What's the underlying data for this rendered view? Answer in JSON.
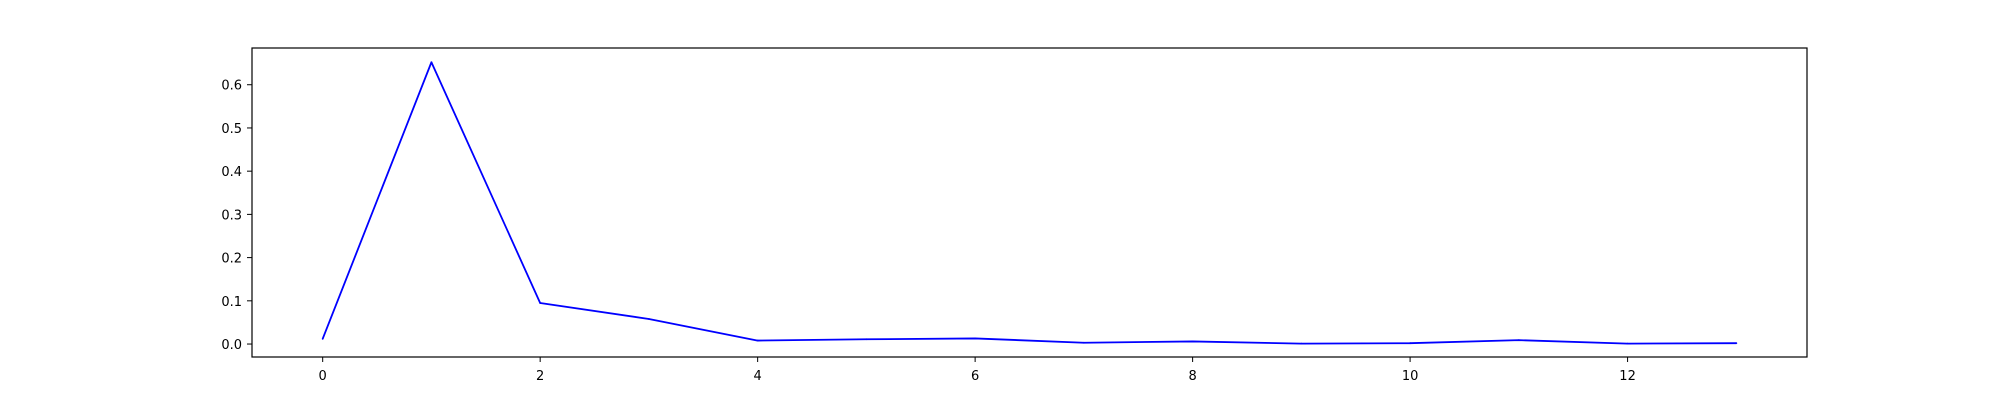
{
  "chart_data": {
    "type": "line",
    "title": "",
    "xlabel": "",
    "ylabel": "",
    "x": [
      0,
      1,
      2,
      3,
      4,
      5,
      6,
      7,
      8,
      9,
      10,
      11,
      12,
      13
    ],
    "series": [
      {
        "color": "#0000ff",
        "values": [
          0.012,
          0.652,
          0.095,
          0.058,
          0.008,
          0.011,
          0.013,
          0.003,
          0.006,
          0.001,
          0.002,
          0.009,
          0.001,
          0.002
        ]
      }
    ],
    "xlim": [
      -0.65,
      13.65
    ],
    "ylim": [
      -0.03,
      0.685
    ],
    "x_ticks": [
      0,
      2,
      4,
      6,
      8,
      10,
      12
    ],
    "x_tick_labels": [
      "0",
      "2",
      "4",
      "6",
      "8",
      "10",
      "12"
    ],
    "y_ticks": [
      0.0,
      0.1,
      0.2,
      0.3,
      0.4,
      0.5,
      0.6
    ],
    "y_tick_labels": [
      "0.0",
      "0.1",
      "0.2",
      "0.3",
      "0.4",
      "0.5",
      "0.6"
    ],
    "grid": false,
    "legend": "none"
  }
}
